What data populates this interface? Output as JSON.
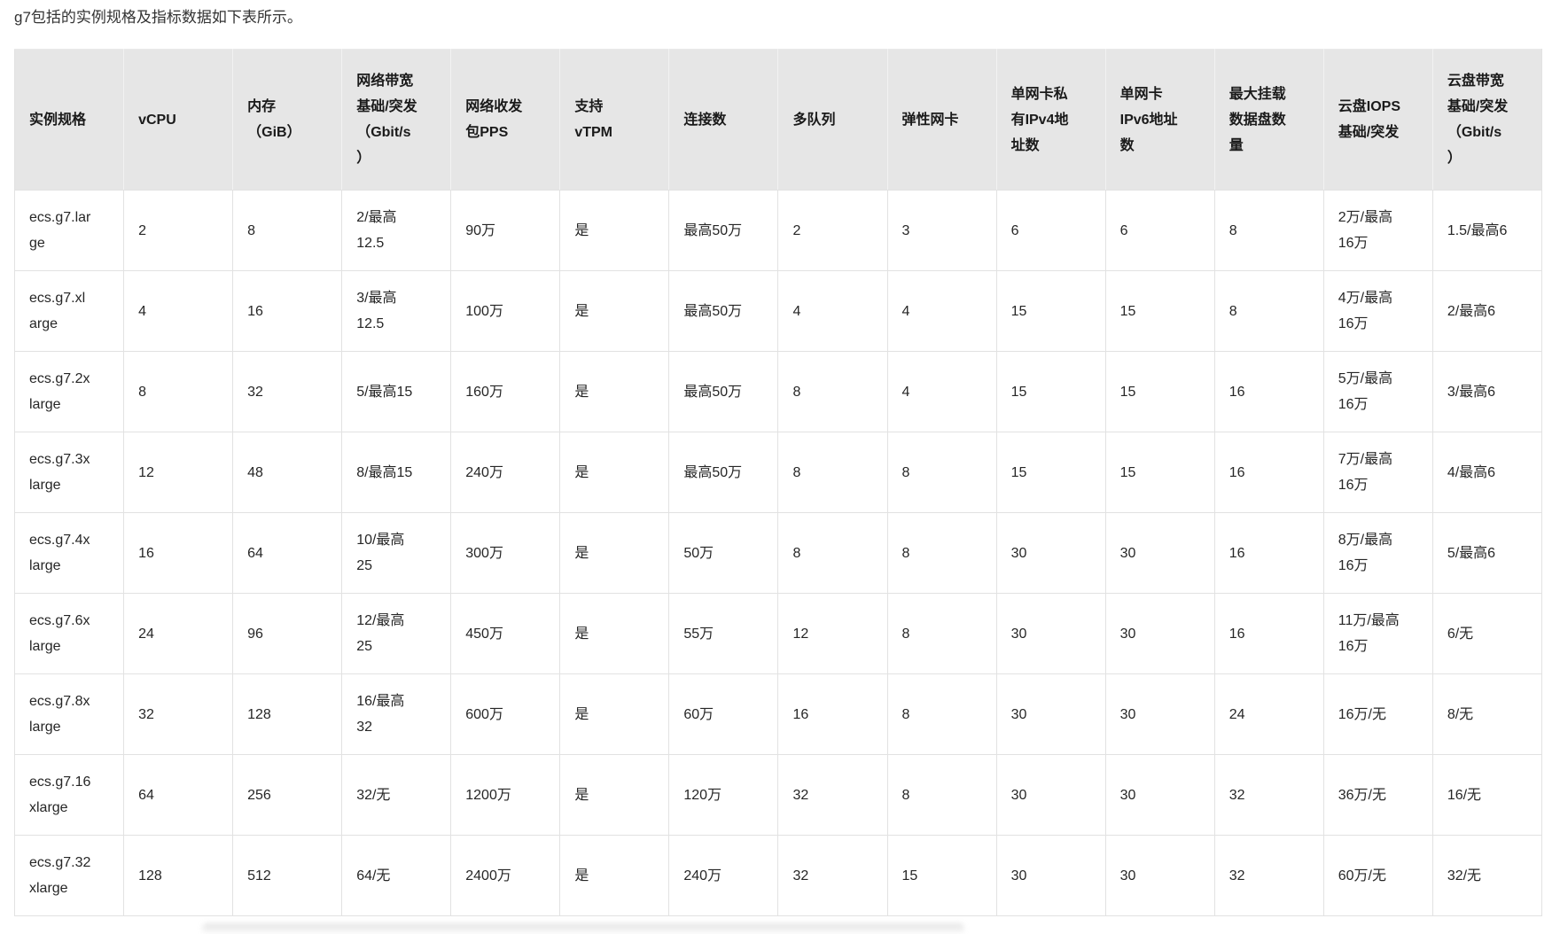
{
  "intro": "g7包括的实例规格及指标数据如下表所示。",
  "colors": {
    "header_bg": "#e6e6e6",
    "border": "#e2e2e2",
    "text": "#262626"
  },
  "table": {
    "headers": [
      "实例规格",
      "vCPU",
      "内存\n（GiB）",
      "网络带宽\n基础/突发\n（Gbit/s\n）",
      "网络收发\n包PPS",
      "支持\nvTPM",
      "连接数",
      "多队列",
      "弹性网卡",
      "单网卡私\n有IPv4地\n址数",
      "单网卡\nIPv6地址\n数",
      "最大挂载\n数据盘数\n量",
      "云盘IOPS\n基础/突发",
      "云盘带宽\n基础/突发\n（Gbit/s\n）"
    ],
    "rows": [
      [
        "ecs.g7.lar\nge",
        "2",
        "8",
        "2/最高\n12.5",
        "90万",
        "是",
        "最高50万",
        "2",
        "3",
        "6",
        "6",
        "8",
        "2万/最高\n16万",
        "1.5/最高6"
      ],
      [
        "ecs.g7.xl\narge",
        "4",
        "16",
        "3/最高\n12.5",
        "100万",
        "是",
        "最高50万",
        "4",
        "4",
        "15",
        "15",
        "8",
        "4万/最高\n16万",
        "2/最高6"
      ],
      [
        "ecs.g7.2x\nlarge",
        "8",
        "32",
        "5/最高15",
        "160万",
        "是",
        "最高50万",
        "8",
        "4",
        "15",
        "15",
        "16",
        "5万/最高\n16万",
        "3/最高6"
      ],
      [
        "ecs.g7.3x\nlarge",
        "12",
        "48",
        "8/最高15",
        "240万",
        "是",
        "最高50万",
        "8",
        "8",
        "15",
        "15",
        "16",
        "7万/最高\n16万",
        "4/最高6"
      ],
      [
        "ecs.g7.4x\nlarge",
        "16",
        "64",
        "10/最高\n25",
        "300万",
        "是",
        "50万",
        "8",
        "8",
        "30",
        "30",
        "16",
        "8万/最高\n16万",
        "5/最高6"
      ],
      [
        "ecs.g7.6x\nlarge",
        "24",
        "96",
        "12/最高\n25",
        "450万",
        "是",
        "55万",
        "12",
        "8",
        "30",
        "30",
        "16",
        "11万/最高\n16万",
        "6/无"
      ],
      [
        "ecs.g7.8x\nlarge",
        "32",
        "128",
        "16/最高\n32",
        "600万",
        "是",
        "60万",
        "16",
        "8",
        "30",
        "30",
        "24",
        "16万/无",
        "8/无"
      ],
      [
        "ecs.g7.16\nxlarge",
        "64",
        "256",
        "32/无",
        "1200万",
        "是",
        "120万",
        "32",
        "8",
        "30",
        "30",
        "32",
        "36万/无",
        "16/无"
      ],
      [
        "ecs.g7.32\nxlarge",
        "128",
        "512",
        "64/无",
        "2400万",
        "是",
        "240万",
        "32",
        "15",
        "30",
        "30",
        "32",
        "60万/无",
        "32/无"
      ]
    ]
  }
}
